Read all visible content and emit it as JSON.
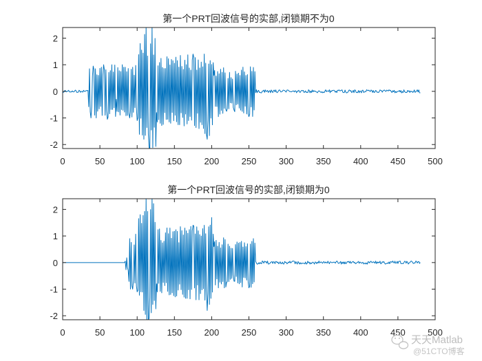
{
  "chart_data": [
    {
      "type": "line",
      "title": "第一个PRT回波信号的实部,闭锁期不为0",
      "xlabel": "",
      "ylabel": "",
      "xlim": [
        0,
        500
      ],
      "ylim": [
        -2.15,
        2.4
      ],
      "xticks": [
        0,
        50,
        100,
        150,
        200,
        250,
        300,
        350,
        400,
        450,
        500
      ],
      "yticks": [
        -2,
        -1,
        0,
        1,
        2
      ],
      "grid": false,
      "series_color": "#0072bd",
      "pulse_start": 35,
      "pulse_end": 258,
      "total_samples": 481,
      "pre_pulse_noise": 0.05,
      "post_pulse_noise": 0.06,
      "anchors": [
        {
          "x": 38,
          "y": -1.0
        },
        {
          "x": 41,
          "y": 0.95
        },
        {
          "x": 45,
          "y": -1.0
        },
        {
          "x": 55,
          "y": 1.0
        },
        {
          "x": 60,
          "y": -1.05
        },
        {
          "x": 66,
          "y": 1.0
        },
        {
          "x": 72,
          "y": -0.3
        },
        {
          "x": 80,
          "y": 1.0
        },
        {
          "x": 90,
          "y": -1.0
        },
        {
          "x": 100,
          "y": -1.1
        },
        {
          "x": 104,
          "y": 1.8
        },
        {
          "x": 109,
          "y": -1.8
        },
        {
          "x": 112,
          "y": 2.4
        },
        {
          "x": 116,
          "y": -2.1
        },
        {
          "x": 120,
          "y": 2.4
        },
        {
          "x": 126,
          "y": -0.8
        },
        {
          "x": 140,
          "y": 1.3
        },
        {
          "x": 145,
          "y": -1.2
        },
        {
          "x": 158,
          "y": 1.35
        },
        {
          "x": 163,
          "y": -1.3
        },
        {
          "x": 175,
          "y": 1.4
        },
        {
          "x": 183,
          "y": -1.4
        },
        {
          "x": 190,
          "y": 1.4
        },
        {
          "x": 194,
          "y": -1.8
        },
        {
          "x": 203,
          "y": 0.6
        },
        {
          "x": 209,
          "y": -0.95
        },
        {
          "x": 220,
          "y": -0.75
        },
        {
          "x": 230,
          "y": -0.7
        },
        {
          "x": 240,
          "y": 0.8
        },
        {
          "x": 250,
          "y": -0.95
        },
        {
          "x": 256,
          "y": 0.9
        }
      ]
    },
    {
      "type": "line",
      "title": "第一个PRT回波信号的实部,闭锁期为0",
      "xlabel": "",
      "ylabel": "",
      "xlim": [
        0,
        500
      ],
      "ylim": [
        -2.15,
        2.4
      ],
      "xticks": [
        0,
        50,
        100,
        150,
        200,
        250,
        300,
        350,
        400,
        450,
        500
      ],
      "yticks": [
        -2,
        -1,
        0,
        1,
        2
      ],
      "grid": false,
      "series_color": "#0072bd",
      "blanking_end": 84,
      "pulse_start": 84,
      "pulse_end": 258,
      "total_samples": 481,
      "pre_pulse_noise": 0,
      "post_pulse_noise": 0.06,
      "anchors": [
        {
          "x": 84,
          "y": 0.05
        },
        {
          "x": 88,
          "y": -0.3
        },
        {
          "x": 90,
          "y": 0.9
        },
        {
          "x": 94,
          "y": -1.0
        },
        {
          "x": 100,
          "y": -1.1
        },
        {
          "x": 104,
          "y": 1.8
        },
        {
          "x": 109,
          "y": -1.8
        },
        {
          "x": 112,
          "y": 2.4
        },
        {
          "x": 116,
          "y": -2.1
        },
        {
          "x": 120,
          "y": 2.4
        },
        {
          "x": 126,
          "y": -0.8
        },
        {
          "x": 140,
          "y": 1.3
        },
        {
          "x": 145,
          "y": -1.2
        },
        {
          "x": 158,
          "y": 1.35
        },
        {
          "x": 163,
          "y": -1.3
        },
        {
          "x": 175,
          "y": 1.4
        },
        {
          "x": 183,
          "y": -1.4
        },
        {
          "x": 190,
          "y": 1.4
        },
        {
          "x": 194,
          "y": -1.8
        },
        {
          "x": 203,
          "y": 0.6
        },
        {
          "x": 209,
          "y": -0.95
        },
        {
          "x": 220,
          "y": -0.75
        },
        {
          "x": 230,
          "y": -0.7
        },
        {
          "x": 240,
          "y": 0.8
        },
        {
          "x": 250,
          "y": -0.95
        },
        {
          "x": 256,
          "y": 0.9
        }
      ]
    }
  ],
  "watermark": {
    "brand": "天天Matlab",
    "source": "@51CTO博客",
    "icon": "wechat-icon"
  }
}
